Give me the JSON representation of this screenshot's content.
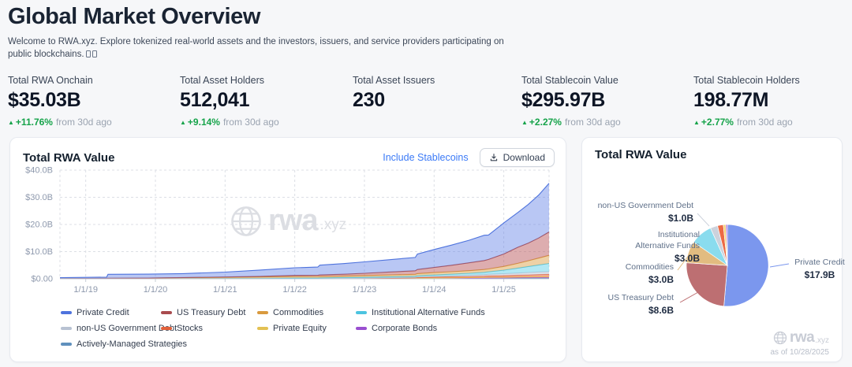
{
  "header": {
    "title": "Global Market Overview",
    "subtitle_line1": "Welcome to RWA.xyz. Explore tokenized real-world assets and the investors, issuers, and service providers participating on",
    "subtitle_line2": "public blockchains."
  },
  "stats": [
    {
      "label": "Total RWA Onchain",
      "value": "$35.03B",
      "delta": "+11.76%",
      "suffix": "from 30d ago"
    },
    {
      "label": "Total Asset Holders",
      "value": "512,041",
      "delta": "+9.14%",
      "suffix": "from 30d ago"
    },
    {
      "label": "Total Asset Issuers",
      "value": "230",
      "delta": "",
      "suffix": ""
    },
    {
      "label": "Total Stablecoin Value",
      "value": "$295.97B",
      "delta": "+2.27%",
      "suffix": "from 30d ago"
    },
    {
      "label": "Total Stablecoin Holders",
      "value": "198.77M",
      "delta": "+2.77%",
      "suffix": "from 30d ago"
    }
  ],
  "controls": {
    "include_stablecoins": "Include Stablecoins",
    "download": "Download"
  },
  "watermark": {
    "brand": "rwa",
    "domain": ".xyz"
  },
  "colors": {
    "positive_green": "#16a34a",
    "link_blue": "#3b7af7",
    "card_border": "#e7eaf0",
    "page_bg": "#f6f7f9"
  },
  "pie_callouts": [
    {
      "lines": [
        "non-US Government Debt"
      ],
      "value": "$1.0B"
    },
    {
      "lines": [
        "Institutional",
        "Alternative Funds"
      ],
      "value": "$3.0B"
    },
    {
      "lines": [
        "Commodities"
      ],
      "value": "$3.0B"
    },
    {
      "lines": [
        "US Treasury Debt"
      ],
      "value": "$8.6B"
    },
    {
      "lines": [
        "Private Credit"
      ],
      "value": "$17.9B"
    }
  ],
  "chart_data": [
    {
      "type": "area",
      "title": "Total RWA Value",
      "stacked": true,
      "grid": "dashed",
      "ylabel": "",
      "ylim": [
        0,
        40
      ],
      "x_domain": [
        2018.63,
        2025.65
      ],
      "y_ticks": [
        {
          "v": 0,
          "label": "$0.00"
        },
        {
          "v": 10,
          "label": "$10.0B"
        },
        {
          "v": 20,
          "label": "$20.0B"
        },
        {
          "v": 30,
          "label": "$30.0B"
        },
        {
          "v": 40,
          "label": "$40.0B"
        }
      ],
      "x_ticks": [
        {
          "v": 2019,
          "label": "1/1/19"
        },
        {
          "v": 2020,
          "label": "1/1/20"
        },
        {
          "v": 2021,
          "label": "1/1/21"
        },
        {
          "v": 2022,
          "label": "1/1/22"
        },
        {
          "v": 2023,
          "label": "1/1/23"
        },
        {
          "v": 2024,
          "label": "1/1/24"
        },
        {
          "v": 2025,
          "label": "1/1/25"
        }
      ],
      "x": [
        2018.63,
        2019.0,
        2019.3,
        2019.32,
        2019.9,
        2020.4,
        2021.0,
        2021.5,
        2022.0,
        2022.33,
        2022.36,
        2022.7,
        2023.0,
        2023.4,
        2023.73,
        2023.76,
        2024.0,
        2024.25,
        2024.5,
        2024.72,
        2024.78,
        2025.0,
        2025.2,
        2025.35,
        2025.5,
        2025.65
      ],
      "series": [
        {
          "name": "Private Credit",
          "color": "#4e73dd",
          "fill": "rgba(99,130,231,0.45)",
          "values": [
            0.35,
            0.4,
            0.45,
            1.45,
            1.4,
            1.45,
            1.8,
            2.3,
            2.8,
            3.0,
            3.6,
            3.9,
            4.2,
            4.6,
            4.9,
            5.7,
            6.6,
            7.4,
            8.3,
            9.3,
            9.0,
            11.4,
            12.8,
            14.2,
            15.8,
            17.9
          ]
        },
        {
          "name": "US Treasury Debt",
          "color": "#a94b4e",
          "fill": "rgba(188,92,95,0.5)",
          "values": [
            0,
            0,
            0,
            0,
            0.02,
            0.05,
            0.1,
            0.2,
            0.4,
            0.45,
            0.5,
            0.65,
            0.8,
            1.1,
            1.3,
            1.5,
            1.9,
            2.4,
            2.9,
            3.3,
            3.5,
            4.6,
            5.9,
            6.5,
            7.4,
            8.6
          ]
        },
        {
          "name": "Commodities",
          "color": "#d99a3e",
          "fill": "rgba(226,178,106,0.6)",
          "values": [
            0.02,
            0.05,
            0.1,
            0.12,
            0.2,
            0.3,
            0.4,
            0.5,
            0.55,
            0.55,
            0.55,
            0.55,
            0.6,
            0.65,
            0.7,
            0.75,
            0.85,
            0.9,
            0.95,
            1.05,
            1.05,
            1.35,
            1.75,
            2.1,
            2.5,
            3.0
          ]
        },
        {
          "name": "Institutional Alternative Funds",
          "color": "#4cc4e0",
          "fill": "rgba(126,216,236,0.6)",
          "values": [
            0.05,
            0.06,
            0.07,
            0.07,
            0.08,
            0.1,
            0.12,
            0.15,
            0.18,
            0.18,
            0.18,
            0.22,
            0.28,
            0.32,
            0.38,
            0.42,
            0.5,
            0.6,
            0.72,
            0.85,
            0.9,
            1.3,
            1.8,
            2.2,
            2.6,
            3.0
          ]
        },
        {
          "name": "non-US Government Debt",
          "color": "#b8c2d2",
          "fill": "rgba(205,213,226,0.7)",
          "values": [
            0,
            0,
            0,
            0,
            0,
            0,
            0.02,
            0.03,
            0.05,
            0.05,
            0.05,
            0.08,
            0.1,
            0.14,
            0.18,
            0.2,
            0.28,
            0.36,
            0.45,
            0.55,
            0.6,
            0.7,
            0.8,
            0.88,
            0.95,
            1.0
          ]
        },
        {
          "name": "Stocks",
          "color": "#e2603a",
          "fill": "rgba(238,122,88,0.6)",
          "values": [
            0,
            0,
            0,
            0,
            0,
            0,
            0.02,
            0.03,
            0.06,
            0.06,
            0.1,
            0.12,
            0.14,
            0.18,
            0.2,
            0.28,
            0.32,
            0.36,
            0.4,
            0.46,
            0.5,
            0.56,
            0.62,
            0.68,
            0.73,
            0.8
          ]
        },
        {
          "name": "Private Equity",
          "color": "#e3c153",
          "fill": "rgba(243,214,120,0.7)",
          "values": [
            0,
            0,
            0,
            0,
            0,
            0,
            0,
            0,
            0.02,
            0.02,
            0.02,
            0.03,
            0.05,
            0.06,
            0.08,
            0.1,
            0.13,
            0.15,
            0.18,
            0.2,
            0.22,
            0.25,
            0.28,
            0.3,
            0.33,
            0.35
          ]
        },
        {
          "name": "Corporate Bonds",
          "color": "#9a4fd0",
          "fill": "rgba(171,95,214,0.6)",
          "values": [
            0,
            0,
            0,
            0,
            0,
            0,
            0,
            0,
            0,
            0,
            0.01,
            0.02,
            0.03,
            0.05,
            0.06,
            0.07,
            0.09,
            0.1,
            0.12,
            0.14,
            0.15,
            0.16,
            0.18,
            0.19,
            0.2,
            0.2
          ]
        },
        {
          "name": "Actively-Managed Strategies",
          "color": "#5f90bd",
          "fill": "rgba(122,162,197,0.6)",
          "values": [
            0,
            0,
            0,
            0,
            0,
            0,
            0,
            0,
            0,
            0,
            0,
            0.01,
            0.02,
            0.04,
            0.06,
            0.09,
            0.11,
            0.13,
            0.16,
            0.18,
            0.2,
            0.22,
            0.25,
            0.28,
            0.3,
            0.3
          ]
        }
      ]
    },
    {
      "type": "pie",
      "title": "Total RWA Value",
      "as_of": "as of 10/28/2025",
      "slices": [
        {
          "name": "Private Credit",
          "value": 17.9,
          "display": "$17.9B",
          "color": "#7b97ee"
        },
        {
          "name": "US Treasury Debt",
          "value": 8.6,
          "display": "$8.6B",
          "color": "#bd6f72"
        },
        {
          "name": "Commodities",
          "value": 3.0,
          "display": "$3.0B",
          "color": "#e2bc80"
        },
        {
          "name": "Institutional Alternative Funds",
          "value": 3.0,
          "display": "$3.0B",
          "color": "#8adcee"
        },
        {
          "name": "non-US Government Debt",
          "value": 1.0,
          "display": "$1.0B",
          "color": "#ccd2dc"
        },
        {
          "name": "Stocks",
          "value": 0.8,
          "display": "",
          "color": "#ec6a45"
        },
        {
          "name": "Private Equity",
          "value": 0.35,
          "display": "",
          "color": "#f3d474"
        },
        {
          "name": "Corporate Bonds",
          "value": 0.2,
          "display": "",
          "color": "#a257d4"
        }
      ]
    }
  ]
}
